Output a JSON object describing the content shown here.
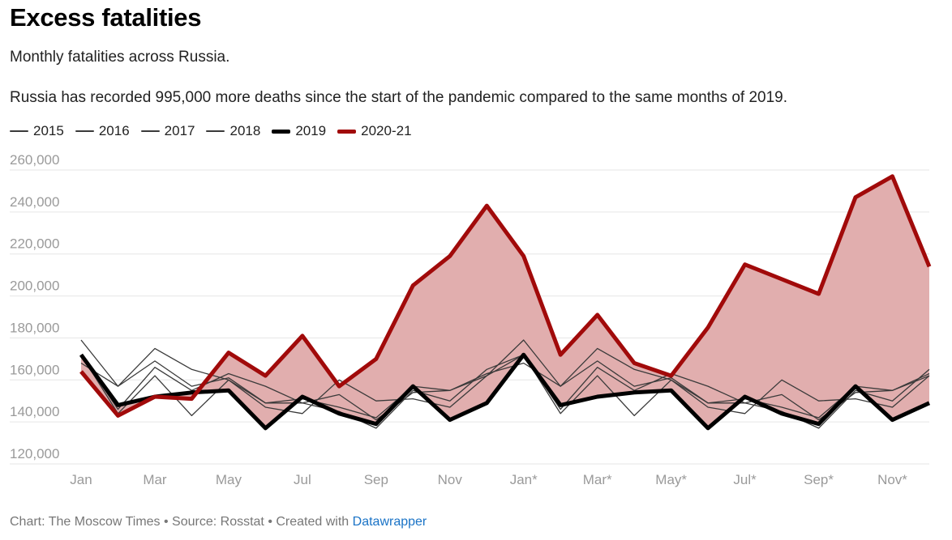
{
  "title": "Excess fatalities",
  "subtitle": "Monthly fatalities across Russia.",
  "description": "Russia has recorded 995,000 more deaths since the start of the pandemic compared to the same months of 2019.",
  "footer": {
    "chart_credit": "Chart: The Moscow Times",
    "separator": " • ",
    "source": "Source: Rosstat",
    "created_with": "Created with",
    "tool_link": "Datawrapper"
  },
  "colors": {
    "thin": "#3a3a3a",
    "baseline": "#000000",
    "highlight": "#a10a0a",
    "fill": "#e1aeae",
    "grid": "#e6e6e6",
    "link": "#1a73c6"
  },
  "chart_data": {
    "type": "line",
    "title": "Excess fatalities",
    "xlabel": "",
    "ylabel": "",
    "ylim": [
      120000,
      260000
    ],
    "yticks": [
      120000,
      140000,
      160000,
      180000,
      200000,
      220000,
      240000,
      260000
    ],
    "ytick_labels": [
      "120,000",
      "140,000",
      "160,000",
      "180,000",
      "200,000",
      "220,000",
      "240,000",
      "260,000"
    ],
    "xtick_labels": [
      {
        "index": 0,
        "label": "Jan"
      },
      {
        "index": 2,
        "label": "Mar"
      },
      {
        "index": 4,
        "label": "May"
      },
      {
        "index": 6,
        "label": "Jul"
      },
      {
        "index": 8,
        "label": "Sep"
      },
      {
        "index": 10,
        "label": "Nov"
      },
      {
        "index": 12,
        "label": "Jan*"
      },
      {
        "index": 14,
        "label": "Mar*"
      },
      {
        "index": 16,
        "label": "May*"
      },
      {
        "index": 18,
        "label": "Jul*"
      },
      {
        "index": 20,
        "label": "Sep*"
      },
      {
        "index": 22,
        "label": "Nov*"
      }
    ],
    "categories": [
      "Jan",
      "Feb",
      "Mar",
      "Apr",
      "May",
      "Jun",
      "Jul",
      "Aug",
      "Sep",
      "Oct",
      "Nov",
      "Dec",
      "Jan*",
      "Feb*",
      "Mar*",
      "Apr*",
      "May*",
      "Jun*",
      "Jul*",
      "Aug*",
      "Sep*",
      "Oct*",
      "Nov*",
      "Dec*"
    ],
    "legend_placement": "top-left",
    "series": [
      {
        "name": "2015",
        "style": "thin",
        "values": [
          179000,
          157000,
          175000,
          165000,
          160000,
          149000,
          151000,
          147000,
          142000,
          157000,
          155000,
          162000,
          179000,
          157000,
          175000,
          165000,
          160000,
          149000,
          151000,
          147000,
          142000,
          157000,
          155000,
          162000
        ]
      },
      {
        "name": "2016",
        "style": "thin",
        "values": [
          168000,
          157000,
          169000,
          157000,
          161000,
          149000,
          149000,
          153000,
          141000,
          154000,
          155000,
          163000,
          168000,
          157000,
          169000,
          157000,
          161000,
          149000,
          149000,
          153000,
          141000,
          154000,
          155000,
          163000
        ]
      },
      {
        "name": "2017",
        "style": "thin",
        "values": [
          172000,
          146000,
          166000,
          155000,
          163000,
          157000,
          149000,
          145000,
          137000,
          155000,
          150000,
          165000,
          172000,
          146000,
          166000,
          155000,
          163000,
          157000,
          149000,
          145000,
          137000,
          155000,
          150000,
          165000
        ]
      },
      {
        "name": "2018",
        "style": "thin",
        "values": [
          172000,
          144000,
          162000,
          143000,
          160000,
          147000,
          144000,
          160000,
          150000,
          151000,
          147000,
          162000,
          172000,
          144000,
          162000,
          143000,
          160000,
          147000,
          144000,
          160000,
          150000,
          151000,
          147000,
          162000
        ]
      },
      {
        "name": "2019",
        "style": "baseline",
        "values": [
          172000,
          148000,
          152000,
          154000,
          155000,
          137000,
          152000,
          144000,
          139000,
          157000,
          141000,
          149000,
          172000,
          148000,
          152000,
          154000,
          155000,
          137000,
          152000,
          144000,
          139000,
          157000,
          141000,
          149000
        ]
      },
      {
        "name": "2020-21",
        "style": "highlight",
        "values": [
          164000,
          143000,
          152000,
          151000,
          173000,
          162000,
          181000,
          157000,
          170000,
          205000,
          219000,
          243000,
          219000,
          172000,
          191000,
          168000,
          162000,
          185000,
          215000,
          208000,
          201000,
          247000,
          257000,
          214000
        ]
      }
    ]
  }
}
